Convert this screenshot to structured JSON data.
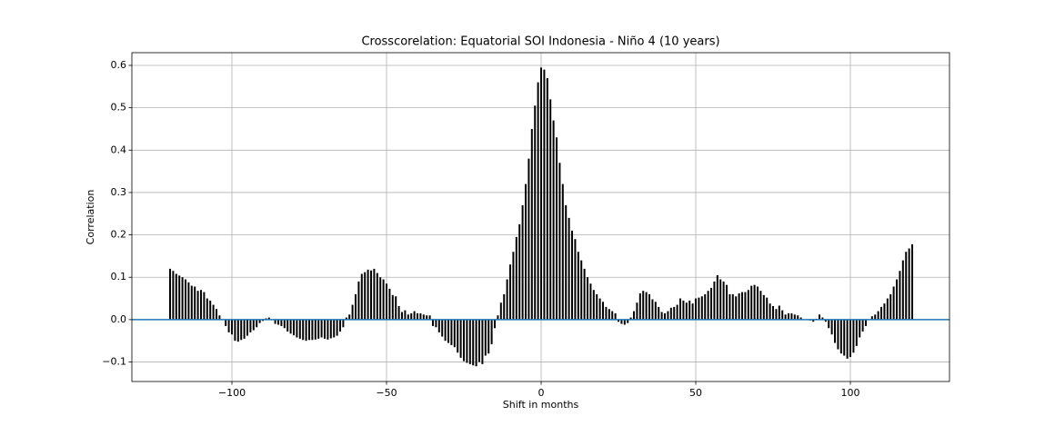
{
  "chart_data": {
    "type": "vlines",
    "title": "Crosscorelation: Equatorial SOI Indonesia - Niño 4 (10 years)",
    "x_label": "Shift in months",
    "y_label": "Correlation",
    "color": "#000000",
    "baseline_color": "#1f77b4",
    "grid": true,
    "xlim": [
      -132.35,
      132.05
    ],
    "ylim": [
      -0.146,
      0.63
    ],
    "xticks": [
      {
        "value": -100,
        "label": "−100"
      },
      {
        "value": -50,
        "label": "−50"
      },
      0,
      50,
      100
    ],
    "yticks": [
      {
        "value": -0.1,
        "label": "−0.1"
      },
      {
        "value": 0,
        "label": "0.0"
      },
      0.1,
      0.2,
      0.3,
      0.4,
      0.5,
      0.6
    ],
    "x": [
      -120,
      -119,
      -118,
      -117,
      -116,
      -115,
      -114,
      -113,
      -112,
      -111,
      -110,
      -109,
      -108,
      -107,
      -106,
      -105,
      -104,
      -103,
      -102,
      -101,
      -100,
      -99,
      -98,
      -97,
      -96,
      -95,
      -94,
      -93,
      -92,
      -91,
      -90,
      -89,
      -88,
      -87,
      -86,
      -85,
      -84,
      -83,
      -82,
      -81,
      -80,
      -79,
      -78,
      -77,
      -76,
      -75,
      -74,
      -73,
      -72,
      -71,
      -70,
      -69,
      -68,
      -67,
      -66,
      -65,
      -64,
      -63,
      -62,
      -61,
      -60,
      -59,
      -58,
      -57,
      -56,
      -55,
      -54,
      -53,
      -52,
      -51,
      -50,
      -49,
      -48,
      -47,
      -46,
      -45,
      -44,
      -43,
      -42,
      -41,
      -40,
      -39,
      -38,
      -37,
      -36,
      -35,
      -34,
      -33,
      -32,
      -31,
      -30,
      -29,
      -28,
      -27,
      -26,
      -25,
      -24,
      -23,
      -22,
      -21,
      -20,
      -19,
      -18,
      -17,
      -16,
      -15,
      -14,
      -13,
      -12,
      -11,
      -10,
      -9,
      -8,
      -7,
      -6,
      -5,
      -4,
      -3,
      -2,
      -1,
      0,
      1,
      2,
      3,
      4,
      5,
      6,
      7,
      8,
      9,
      10,
      11,
      12,
      13,
      14,
      15,
      16,
      17,
      18,
      19,
      20,
      21,
      22,
      23,
      24,
      25,
      26,
      27,
      28,
      29,
      30,
      31,
      32,
      33,
      34,
      35,
      36,
      37,
      38,
      39,
      40,
      41,
      42,
      43,
      44,
      45,
      46,
      47,
      48,
      49,
      50,
      51,
      52,
      53,
      54,
      55,
      56,
      57,
      58,
      59,
      60,
      61,
      62,
      63,
      64,
      65,
      66,
      67,
      68,
      69,
      70,
      71,
      72,
      73,
      74,
      75,
      76,
      77,
      78,
      79,
      80,
      81,
      82,
      83,
      84,
      85,
      86,
      87,
      88,
      89,
      90,
      91,
      92,
      93,
      94,
      95,
      96,
      97,
      98,
      99,
      100,
      101,
      102,
      103,
      104,
      105,
      106,
      107,
      108,
      109,
      110,
      111,
      112,
      113,
      114,
      115,
      116,
      117,
      118,
      119,
      120
    ],
    "values": [
      0.12,
      0.115,
      0.108,
      0.104,
      0.1,
      0.095,
      0.088,
      0.08,
      0.078,
      0.068,
      0.07,
      0.065,
      0.05,
      0.045,
      0.035,
      0.025,
      0.01,
      0.0,
      -0.015,
      -0.03,
      -0.035,
      -0.05,
      -0.052,
      -0.048,
      -0.045,
      -0.038,
      -0.03,
      -0.025,
      -0.018,
      -0.008,
      -0.003,
      0.003,
      0.005,
      0.0,
      -0.01,
      -0.012,
      -0.015,
      -0.02,
      -0.028,
      -0.033,
      -0.037,
      -0.042,
      -0.045,
      -0.048,
      -0.05,
      -0.048,
      -0.048,
      -0.047,
      -0.045,
      -0.042,
      -0.045,
      -0.047,
      -0.044,
      -0.042,
      -0.038,
      -0.028,
      -0.018,
      0.005,
      0.012,
      0.035,
      0.06,
      0.09,
      0.108,
      0.112,
      0.118,
      0.116,
      0.12,
      0.11,
      0.1,
      0.095,
      0.085,
      0.073,
      0.058,
      0.055,
      0.032,
      0.018,
      0.022,
      0.012,
      0.015,
      0.02,
      0.015,
      0.015,
      0.012,
      0.01,
      0.01,
      -0.015,
      -0.018,
      -0.03,
      -0.04,
      -0.05,
      -0.055,
      -0.06,
      -0.065,
      -0.078,
      -0.09,
      -0.098,
      -0.102,
      -0.105,
      -0.108,
      -0.11,
      -0.1,
      -0.105,
      -0.085,
      -0.08,
      -0.058,
      -0.02,
      0.01,
      0.04,
      0.06,
      0.095,
      0.13,
      0.16,
      0.195,
      0.225,
      0.27,
      0.32,
      0.38,
      0.45,
      0.505,
      0.56,
      0.595,
      0.59,
      0.57,
      0.52,
      0.47,
      0.43,
      0.37,
      0.32,
      0.27,
      0.24,
      0.21,
      0.19,
      0.16,
      0.14,
      0.12,
      0.1,
      0.085,
      0.07,
      0.06,
      0.05,
      0.042,
      0.03,
      0.025,
      0.02,
      0.015,
      -0.005,
      -0.01,
      -0.012,
      -0.008,
      0.005,
      0.02,
      0.04,
      0.062,
      0.068,
      0.065,
      0.06,
      0.048,
      0.042,
      0.03,
      0.018,
      0.015,
      0.02,
      0.028,
      0.03,
      0.035,
      0.05,
      0.045,
      0.04,
      0.045,
      0.038,
      0.05,
      0.052,
      0.055,
      0.06,
      0.068,
      0.075,
      0.09,
      0.105,
      0.095,
      0.09,
      0.082,
      0.06,
      0.06,
      0.055,
      0.062,
      0.065,
      0.065,
      0.07,
      0.08,
      0.082,
      0.078,
      0.068,
      0.058,
      0.052,
      0.038,
      0.032,
      0.025,
      0.033,
      0.022,
      0.012,
      0.015,
      0.015,
      0.012,
      0.01,
      0.005,
      0.0,
      0.0,
      -0.002,
      -0.005,
      0.002,
      0.012,
      0.005,
      -0.005,
      -0.02,
      -0.035,
      -0.055,
      -0.07,
      -0.08,
      -0.085,
      -0.092,
      -0.088,
      -0.078,
      -0.062,
      -0.042,
      -0.028,
      -0.015,
      0.0,
      0.008,
      0.012,
      0.02,
      0.03,
      0.038,
      0.05,
      0.06,
      0.078,
      0.095,
      0.115,
      0.14,
      0.16,
      0.168,
      0.178
    ]
  }
}
